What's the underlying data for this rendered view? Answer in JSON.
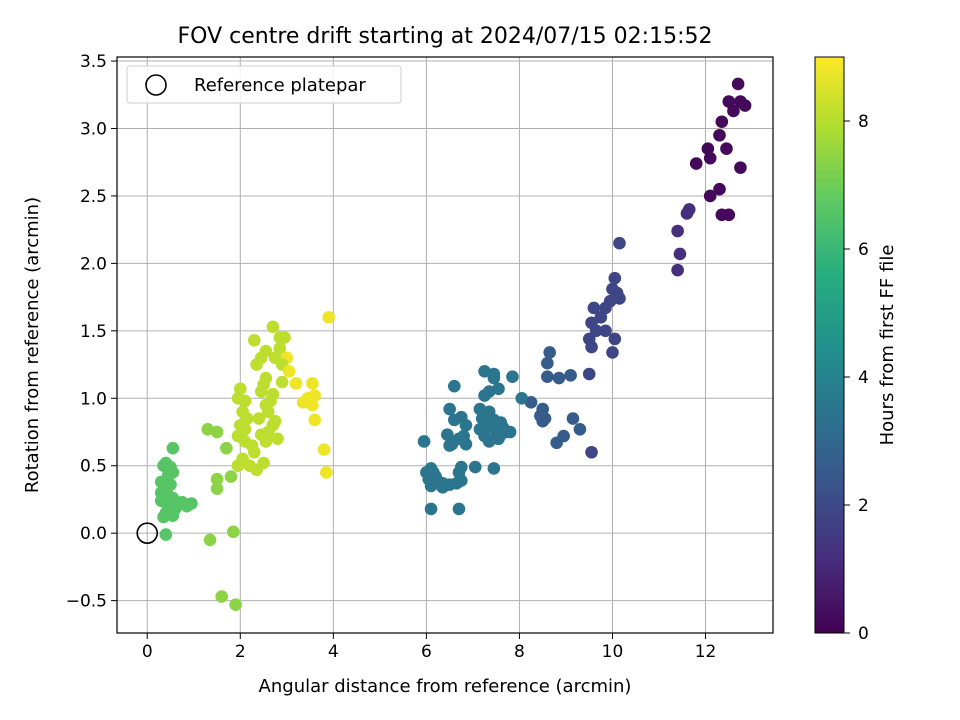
{
  "chart_data": {
    "type": "scatter",
    "title": "FOV centre drift starting at 2024/07/15 02:15:52",
    "xlabel": "Angular distance from reference (arcmin)",
    "ylabel": "Rotation from reference (arcmin)",
    "xlim": [
      -0.65,
      13.45
    ],
    "ylim": [
      -0.74,
      3.53
    ],
    "xticks": [
      0,
      2,
      4,
      6,
      8,
      10,
      12
    ],
    "yticks": [
      -0.5,
      0.0,
      0.5,
      1.0,
      1.5,
      2.0,
      2.5,
      3.0,
      3.5
    ],
    "xtick_labels": [
      "0",
      "2",
      "4",
      "6",
      "8",
      "10",
      "12"
    ],
    "ytick_labels": [
      "−0.5",
      "0.0",
      "0.5",
      "1.0",
      "1.5",
      "2.0",
      "2.5",
      "3.0",
      "3.5"
    ],
    "grid": true,
    "legend": {
      "placement": "upper-left",
      "entries": [
        "Reference platepar"
      ]
    },
    "colorbar": {
      "label": "Hours from first FF file",
      "colormap": "viridis",
      "range": [
        0,
        9
      ],
      "ticks": [
        0,
        2,
        4,
        6,
        8
      ],
      "tick_labels": [
        "0",
        "2",
        "4",
        "6",
        "8"
      ]
    },
    "reference_point": {
      "name": "Reference platepar",
      "x": 0.0,
      "y": 0.0
    },
    "points_format": [
      "x",
      "y",
      "hours"
    ],
    "points": [
      [
        12.7,
        3.33
      ],
      [
        12.5,
        3.2
      ],
      [
        12.75,
        3.2
      ],
      [
        12.85,
        3.17
      ],
      [
        12.6,
        3.13
      ],
      [
        12.35,
        3.05
      ],
      [
        12.3,
        2.95
      ],
      [
        12.45,
        2.85
      ],
      [
        12.75,
        2.71
      ],
      [
        12.05,
        2.85
      ],
      [
        12.1,
        2.78
      ],
      [
        11.8,
        2.74
      ],
      [
        12.3,
        2.55
      ],
      [
        12.1,
        2.5
      ],
      [
        11.65,
        2.4
      ],
      [
        11.6,
        2.37
      ],
      [
        12.35,
        2.36
      ],
      [
        12.5,
        2.36
      ],
      [
        11.4,
        2.24
      ],
      [
        10.15,
        2.15
      ],
      [
        11.45,
        2.07
      ],
      [
        11.4,
        1.95
      ],
      [
        10.05,
        1.89
      ],
      [
        10.0,
        1.81
      ],
      [
        10.1,
        1.78
      ],
      [
        10.15,
        1.74
      ],
      [
        9.95,
        1.72
      ],
      [
        9.85,
        1.67
      ],
      [
        9.6,
        1.67
      ],
      [
        9.75,
        1.6
      ],
      [
        9.55,
        1.56
      ],
      [
        9.85,
        1.5
      ],
      [
        9.65,
        1.5
      ],
      [
        10.05,
        1.44
      ],
      [
        9.5,
        1.44
      ],
      [
        9.55,
        1.38
      ],
      [
        10.0,
        1.34
      ],
      [
        9.5,
        1.18
      ],
      [
        9.55,
        0.6
      ],
      [
        9.1,
        1.17
      ],
      [
        8.85,
        1.15
      ],
      [
        8.6,
        1.16
      ],
      [
        8.6,
        1.26
      ],
      [
        8.65,
        1.34
      ],
      [
        8.25,
        0.97
      ],
      [
        8.5,
        0.92
      ],
      [
        8.45,
        0.87
      ],
      [
        8.55,
        0.85
      ],
      [
        8.5,
        0.83
      ],
      [
        9.15,
        0.85
      ],
      [
        8.95,
        0.72
      ],
      [
        8.8,
        0.67
      ],
      [
        9.3,
        0.77
      ],
      [
        8.05,
        1.0
      ],
      [
        7.85,
        1.16
      ],
      [
        7.25,
        1.2
      ],
      [
        7.45,
        1.18
      ],
      [
        7.45,
        1.15
      ],
      [
        7.55,
        1.07
      ],
      [
        7.35,
        1.05
      ],
      [
        7.25,
        1.02
      ],
      [
        7.15,
        0.92
      ],
      [
        7.35,
        0.9
      ],
      [
        7.2,
        0.85
      ],
      [
        7.45,
        0.84
      ],
      [
        7.6,
        0.82
      ],
      [
        7.5,
        0.8
      ],
      [
        7.35,
        0.79
      ],
      [
        7.15,
        0.77
      ],
      [
        7.25,
        0.72
      ],
      [
        7.5,
        0.72
      ],
      [
        7.7,
        0.75
      ],
      [
        7.55,
        0.7
      ],
      [
        7.35,
        0.68
      ],
      [
        7.6,
        0.73
      ],
      [
        7.8,
        0.75
      ],
      [
        7.65,
        0.78
      ],
      [
        7.45,
        0.48
      ],
      [
        7.05,
        0.49
      ],
      [
        6.75,
        0.86
      ],
      [
        6.85,
        0.8
      ],
      [
        6.5,
        0.92
      ],
      [
        6.6,
        0.84
      ],
      [
        6.7,
        0.7
      ],
      [
        6.55,
        0.66
      ],
      [
        6.85,
        0.66
      ],
      [
        6.8,
        0.72
      ],
      [
        6.45,
        0.73
      ],
      [
        6.5,
        0.65
      ],
      [
        6.6,
        1.09
      ],
      [
        6.75,
        0.49
      ],
      [
        6.7,
        0.45
      ],
      [
        6.75,
        0.39
      ],
      [
        6.65,
        0.37
      ],
      [
        6.5,
        0.36
      ],
      [
        6.35,
        0.37
      ],
      [
        6.35,
        0.34
      ],
      [
        6.1,
        0.35
      ],
      [
        6.05,
        0.4
      ],
      [
        6.0,
        0.45
      ],
      [
        6.1,
        0.48
      ],
      [
        6.15,
        0.45
      ],
      [
        6.2,
        0.42
      ],
      [
        5.95,
        0.68
      ],
      [
        6.1,
        0.18
      ],
      [
        6.7,
        0.18
      ],
      [
        0.55,
        0.63
      ],
      [
        0.5,
        0.49
      ],
      [
        0.4,
        0.52
      ],
      [
        0.35,
        0.5
      ],
      [
        0.55,
        0.45
      ],
      [
        0.45,
        0.43
      ],
      [
        0.3,
        0.38
      ],
      [
        0.5,
        0.36
      ],
      [
        0.4,
        0.32
      ],
      [
        0.3,
        0.3
      ],
      [
        0.45,
        0.28
      ],
      [
        0.55,
        0.26
      ],
      [
        0.3,
        0.24
      ],
      [
        0.45,
        0.2
      ],
      [
        0.6,
        0.18
      ],
      [
        0.4,
        0.15
      ],
      [
        0.55,
        0.13
      ],
      [
        0.35,
        0.12
      ],
      [
        0.75,
        0.23
      ],
      [
        0.95,
        0.22
      ],
      [
        0.85,
        0.2
      ],
      [
        0.7,
        0.22
      ],
      [
        0.4,
        -0.01
      ],
      [
        1.3,
        0.77
      ],
      [
        1.5,
        0.75
      ],
      [
        1.7,
        0.63
      ],
      [
        1.5,
        0.4
      ],
      [
        1.5,
        0.33
      ],
      [
        1.8,
        0.42
      ],
      [
        1.95,
        0.5
      ],
      [
        1.35,
        -0.05
      ],
      [
        1.85,
        0.01
      ],
      [
        1.6,
        -0.47
      ],
      [
        1.9,
        -0.53
      ],
      [
        2.0,
        1.07
      ],
      [
        1.95,
        1.0
      ],
      [
        2.1,
        0.98
      ],
      [
        2.05,
        0.9
      ],
      [
        2.15,
        0.85
      ],
      [
        2.0,
        0.8
      ],
      [
        2.1,
        0.77
      ],
      [
        1.95,
        0.72
      ],
      [
        2.1,
        0.68
      ],
      [
        2.25,
        0.65
      ],
      [
        2.05,
        0.55
      ],
      [
        2.2,
        0.5
      ],
      [
        2.45,
        1.3
      ],
      [
        2.35,
        1.25
      ],
      [
        2.55,
        1.35
      ],
      [
        2.55,
        1.15
      ],
      [
        2.5,
        1.1
      ],
      [
        2.45,
        1.05
      ],
      [
        2.7,
        1.03
      ],
      [
        2.55,
        0.95
      ],
      [
        2.6,
        0.9
      ],
      [
        2.4,
        0.85
      ],
      [
        2.7,
        0.8
      ],
      [
        2.6,
        0.75
      ],
      [
        2.45,
        0.73
      ],
      [
        2.55,
        0.68
      ],
      [
        2.3,
        0.6
      ],
      [
        2.5,
        0.52
      ],
      [
        2.35,
        0.47
      ],
      [
        2.75,
        0.83
      ],
      [
        2.65,
        0.98
      ],
      [
        2.8,
        0.7
      ],
      [
        2.3,
        1.43
      ],
      [
        2.7,
        1.53
      ],
      [
        2.85,
        1.45
      ],
      [
        2.95,
        1.45
      ],
      [
        2.85,
        1.37
      ],
      [
        3.0,
        1.3
      ],
      [
        2.75,
        1.3
      ],
      [
        2.9,
        1.25
      ],
      [
        3.05,
        1.2
      ],
      [
        2.9,
        1.12
      ],
      [
        3.2,
        1.11
      ],
      [
        3.55,
        1.11
      ],
      [
        3.45,
        1.0
      ],
      [
        3.6,
        1.02
      ],
      [
        3.35,
        0.97
      ],
      [
        3.55,
        0.95
      ],
      [
        3.6,
        0.84
      ],
      [
        3.9,
        1.6
      ],
      [
        3.8,
        0.62
      ],
      [
        3.85,
        0.45
      ]
    ]
  }
}
